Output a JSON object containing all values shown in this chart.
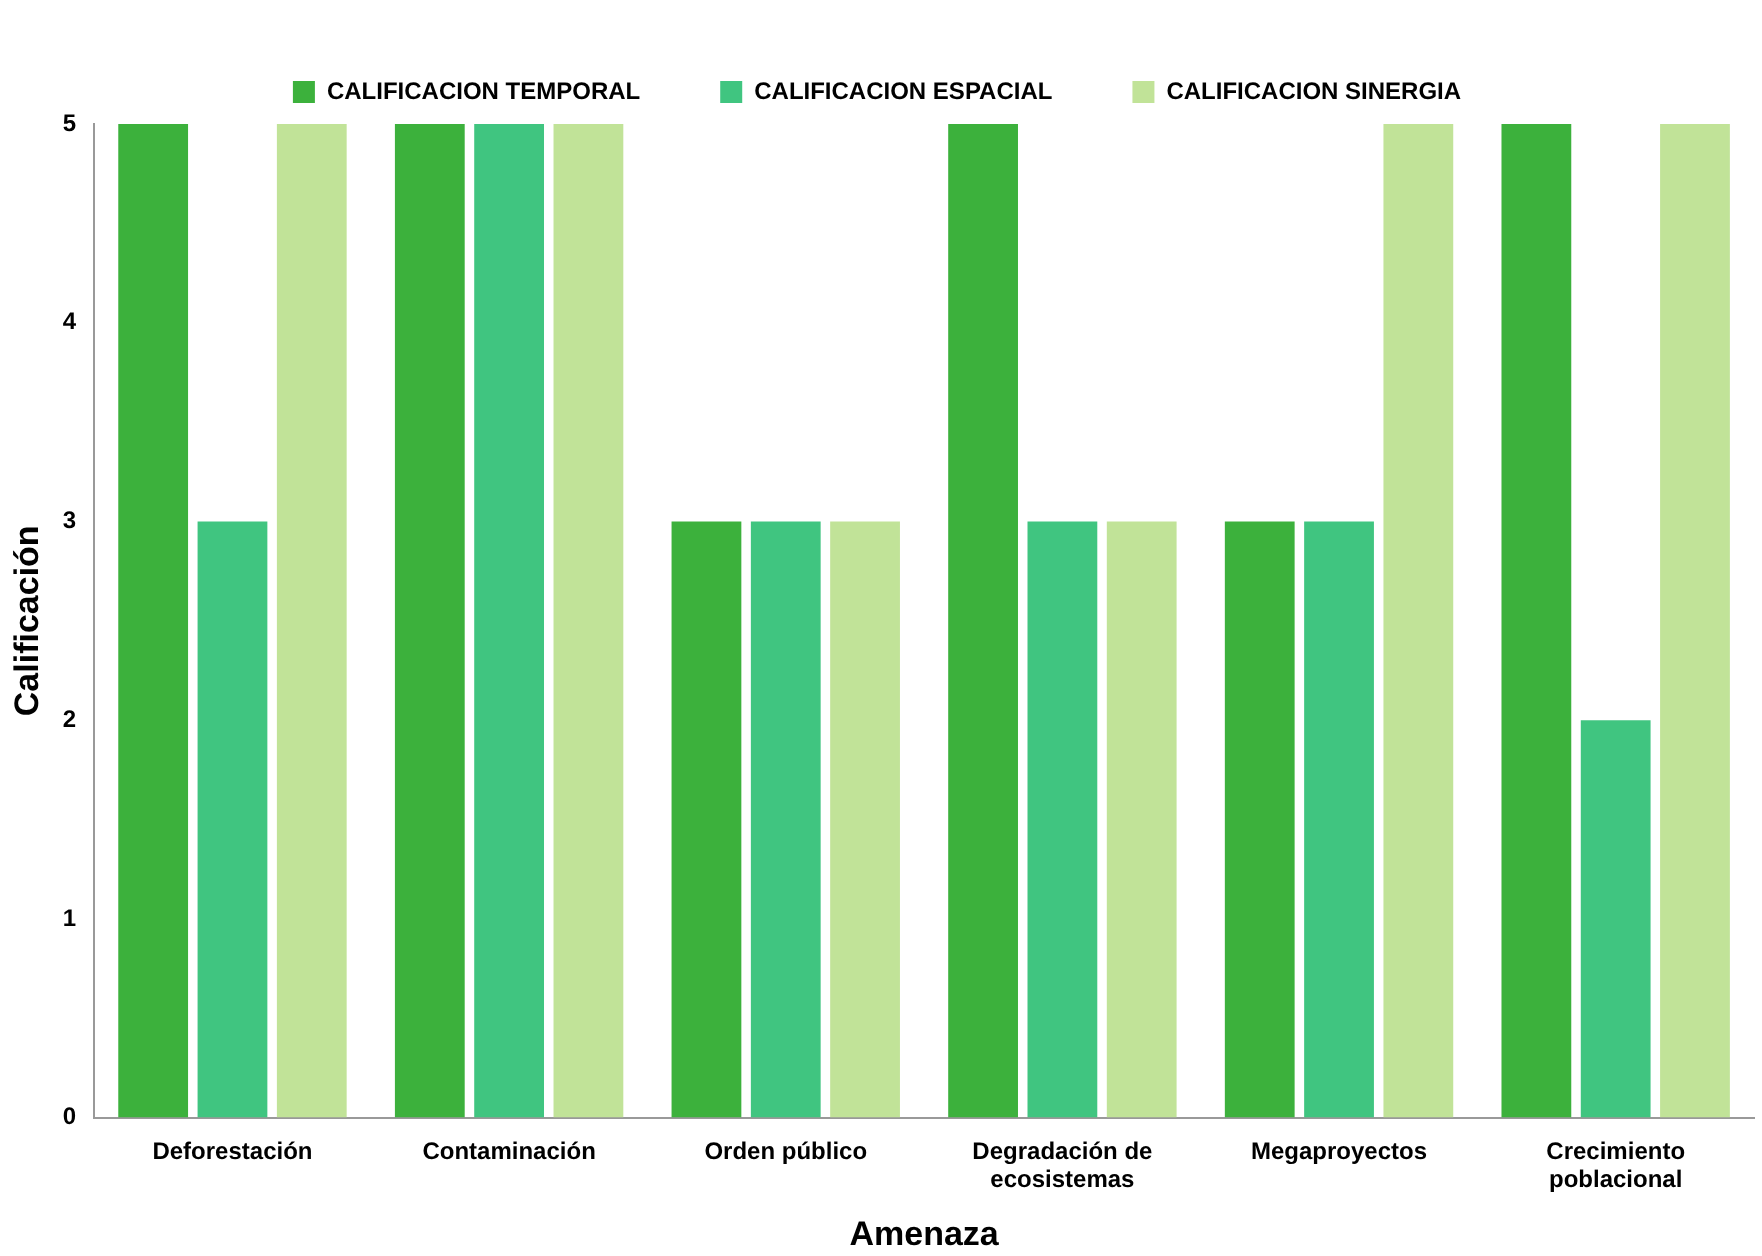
{
  "chart_data": {
    "type": "bar",
    "xlabel": "Amenaza",
    "ylabel": "Calificación",
    "categories": [
      "Deforestación",
      "Contaminación",
      "Orden público",
      "Degradación de ecosistemas",
      "Megaproyectos",
      "Crecimiento poblacional"
    ],
    "series": [
      {
        "name": "CALIFICACION TEMPORAL",
        "color": "#3cb13c",
        "values": [
          5,
          5,
          3,
          5,
          3,
          5
        ]
      },
      {
        "name": "CALIFICACION ESPACIAL",
        "color": "#40c580",
        "values": [
          3,
          5,
          3,
          3,
          3,
          2
        ]
      },
      {
        "name": "CALIFICACION SINERGIA",
        "color": "#c1e398",
        "values": [
          5,
          5,
          3,
          3,
          5,
          5
        ]
      }
    ],
    "ylim": [
      0,
      5
    ],
    "yticks": [
      0,
      1,
      2,
      3,
      4,
      5
    ],
    "grid": false,
    "legend": "top"
  }
}
